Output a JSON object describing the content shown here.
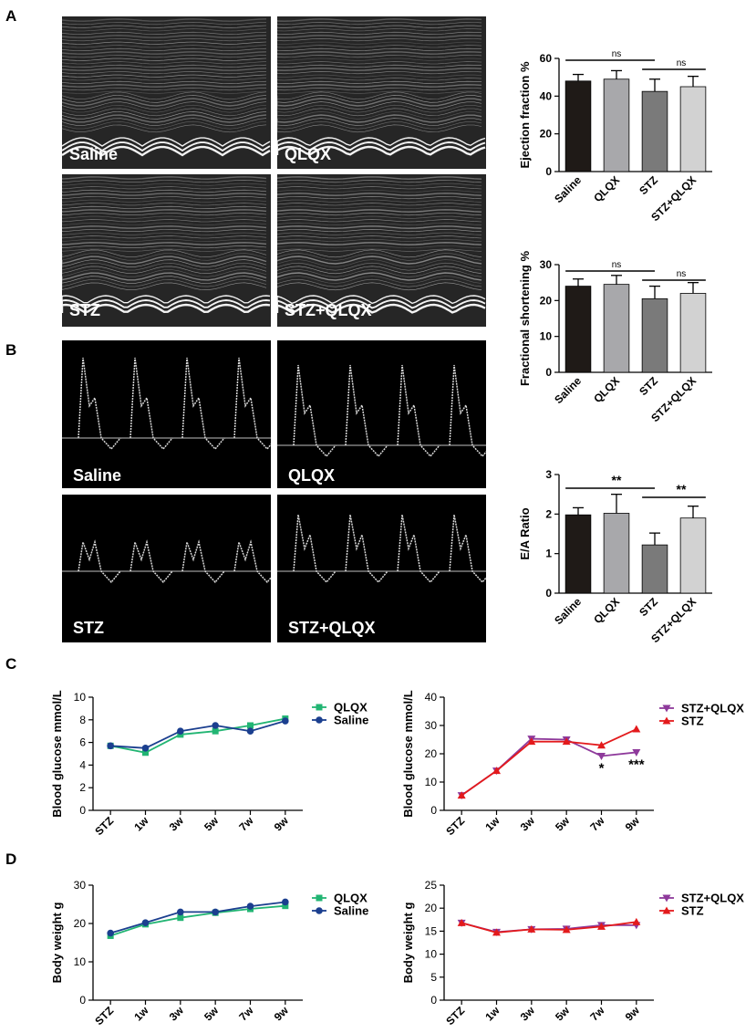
{
  "panel_labels": {
    "a": "A",
    "b": "B",
    "c": "C",
    "d": "D"
  },
  "mmode_labels": [
    "Saline",
    "QLQX",
    "STZ",
    "STZ+QLQX"
  ],
  "doppler_labels": [
    "Saline",
    "QLQX",
    "STZ",
    "STZ+QLQX"
  ],
  "colors": {
    "Saline": "#1f1a17",
    "QLQX": "#a8a8ab",
    "STZ": "#7a7a7a",
    "STZ+QLQX": "#d2d2d2",
    "line_qlqx": "#22b573",
    "line_saline": "#1b3f8f",
    "line_stz_qlqx": "#8e3a9b",
    "line_stz": "#e31a1c"
  },
  "chart_data": [
    {
      "id": "ef",
      "type": "bar",
      "categories": [
        "Saline",
        "QLQX",
        "STZ",
        "STZ+QLQX"
      ],
      "values": [
        48,
        49,
        42.5,
        45
      ],
      "errors": [
        3.5,
        4.5,
        6.5,
        5.5
      ],
      "ylabel": "Ejection fraction %",
      "ylim": [
        0,
        60
      ],
      "yticks": [
        0,
        20,
        40,
        60
      ],
      "sig": [
        {
          "from": 0,
          "to": 2,
          "label": "ns"
        },
        {
          "from": 2,
          "to": 3,
          "label": "ns"
        }
      ]
    },
    {
      "id": "fs",
      "type": "bar",
      "categories": [
        "Saline",
        "QLQX",
        "STZ",
        "STZ+QLQX"
      ],
      "values": [
        24,
        24.5,
        20.5,
        22
      ],
      "errors": [
        2,
        2.5,
        3.5,
        3
      ],
      "ylabel": "Fractional shortening %",
      "ylim": [
        0,
        30
      ],
      "yticks": [
        0,
        10,
        20,
        30
      ],
      "sig": [
        {
          "from": 0,
          "to": 2,
          "label": "ns"
        },
        {
          "from": 2,
          "to": 3,
          "label": "ns"
        }
      ]
    },
    {
      "id": "ea",
      "type": "bar",
      "categories": [
        "Saline",
        "QLQX",
        "STZ",
        "STZ+QLQX"
      ],
      "values": [
        1.98,
        2.02,
        1.22,
        1.9
      ],
      "errors": [
        0.18,
        0.48,
        0.3,
        0.3
      ],
      "ylabel": "E/A Ratio",
      "ylim": [
        0,
        3
      ],
      "yticks": [
        0,
        1,
        2,
        3
      ],
      "sig": [
        {
          "from": 0,
          "to": 2,
          "label": "**"
        },
        {
          "from": 2,
          "to": 3,
          "label": "**"
        }
      ]
    },
    {
      "id": "c1",
      "type": "line",
      "x": [
        "STZ",
        "1w",
        "3w",
        "5w",
        "7w",
        "9w"
      ],
      "series": [
        {
          "name": "QLQX",
          "values": [
            5.7,
            5.1,
            6.7,
            7.0,
            7.5,
            8.1
          ],
          "marker": "square",
          "color": "#22b573"
        },
        {
          "name": "Saline",
          "values": [
            5.7,
            5.5,
            7.0,
            7.5,
            7.0,
            7.9
          ],
          "marker": "circle",
          "color": "#1b3f8f"
        }
      ],
      "ylabel": "Blood glucose mmol/L",
      "ylim": [
        0,
        10
      ],
      "yticks": [
        0,
        2,
        4,
        6,
        8,
        10
      ],
      "legend": "top-right"
    },
    {
      "id": "c2",
      "type": "line",
      "x": [
        "STZ",
        "1w",
        "3w",
        "5w",
        "7w",
        "9w"
      ],
      "series": [
        {
          "name": "STZ+QLQX",
          "values": [
            5.3,
            14.0,
            25.3,
            25.0,
            19.2,
            20.5
          ],
          "marker": "tri-down",
          "color": "#8e3a9b"
        },
        {
          "name": "STZ",
          "values": [
            5.3,
            14.0,
            24.3,
            24.3,
            23.0,
            28.7
          ],
          "marker": "tri-up",
          "color": "#e31a1c"
        }
      ],
      "annotations": [
        {
          "x": "7w",
          "label": "*"
        },
        {
          "x": "9w",
          "label": "***"
        }
      ],
      "ylabel": "Blood glucose mmol/L",
      "ylim": [
        0,
        40
      ],
      "yticks": [
        0,
        10,
        20,
        30,
        40
      ],
      "legend": "top-right"
    },
    {
      "id": "d1",
      "type": "line",
      "x": [
        "STZ",
        "1w",
        "3w",
        "5w",
        "7w",
        "9w"
      ],
      "series": [
        {
          "name": "QLQX",
          "values": [
            16.8,
            19.8,
            21.5,
            22.8,
            23.8,
            24.6
          ],
          "marker": "square",
          "color": "#22b573"
        },
        {
          "name": "Saline",
          "values": [
            17.5,
            20.2,
            23.0,
            23.0,
            24.5,
            25.6
          ],
          "marker": "circle",
          "color": "#1b3f8f"
        }
      ],
      "ylabel": "Body weight g",
      "ylim": [
        0,
        30
      ],
      "yticks": [
        0,
        10,
        20,
        30
      ],
      "legend": "top-right"
    },
    {
      "id": "d2",
      "type": "line",
      "x": [
        "STZ",
        "1w",
        "3w",
        "5w",
        "7w",
        "9w"
      ],
      "series": [
        {
          "name": "STZ+QLQX",
          "values": [
            16.8,
            14.8,
            15.4,
            15.5,
            16.3,
            16.3
          ],
          "marker": "tri-down",
          "color": "#8e3a9b"
        },
        {
          "name": "STZ",
          "values": [
            16.8,
            14.7,
            15.4,
            15.3,
            16.0,
            17.0
          ],
          "marker": "tri-up",
          "color": "#e31a1c"
        }
      ],
      "ylabel": "Body weight g",
      "ylim": [
        0,
        25
      ],
      "yticks": [
        0,
        5,
        10,
        15,
        20,
        25
      ],
      "legend": "top-right"
    }
  ]
}
